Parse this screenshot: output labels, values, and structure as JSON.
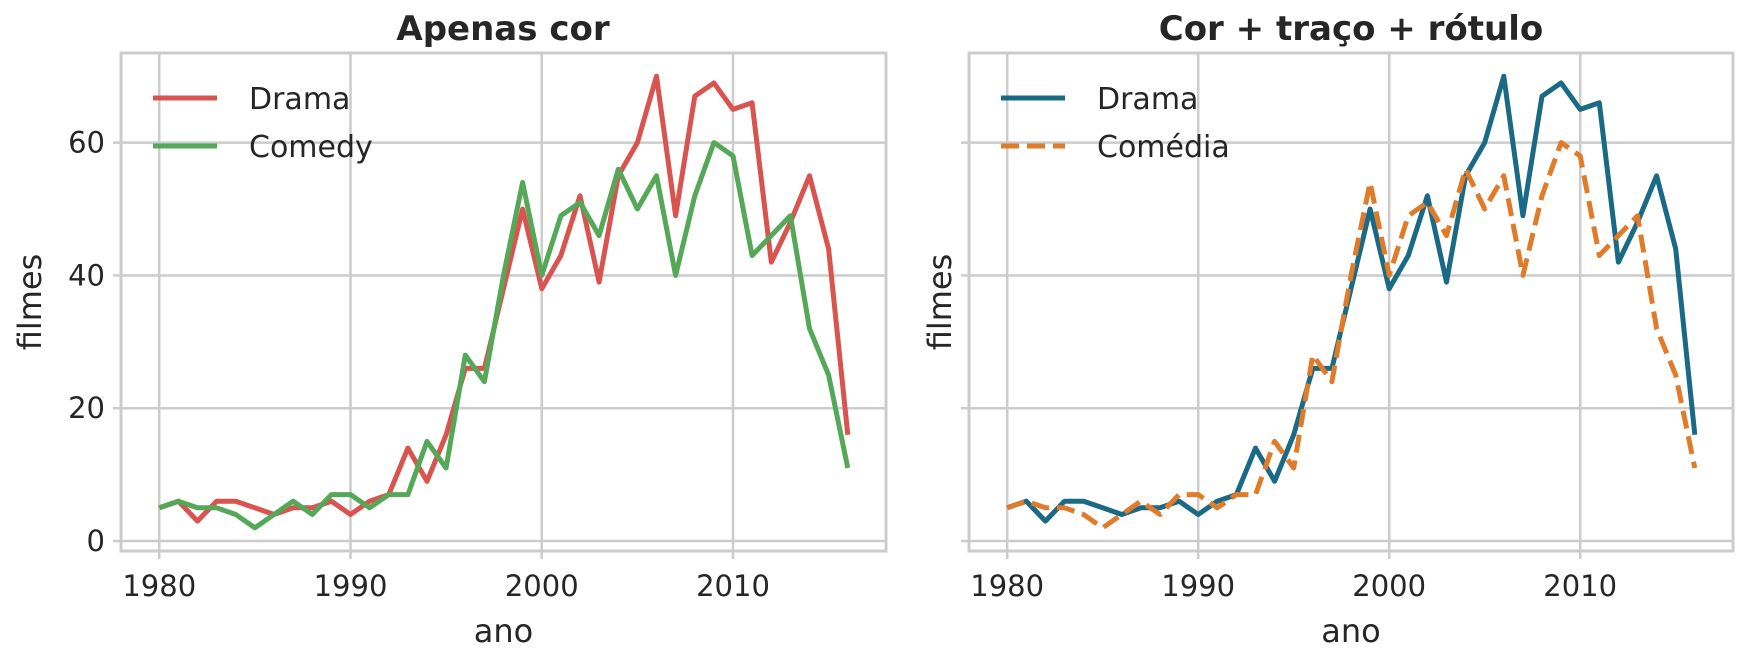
{
  "chart_data": [
    {
      "type": "line",
      "title": "Apenas cor",
      "xlabel": "ano",
      "ylabel": "filmes",
      "xlim": [
        1978,
        2018
      ],
      "ylim": [
        -1.5,
        73.5
      ],
      "xticks": [
        1980,
        1990,
        2000,
        2010
      ],
      "yticks": [
        0,
        20,
        40,
        60
      ],
      "grid": true,
      "legend": "top-left",
      "x": [
        1980,
        1981,
        1982,
        1983,
        1984,
        1985,
        1986,
        1987,
        1988,
        1989,
        1990,
        1991,
        1992,
        1993,
        1994,
        1995,
        1996,
        1997,
        1998,
        1999,
        2000,
        2001,
        2002,
        2003,
        2004,
        2005,
        2006,
        2007,
        2008,
        2009,
        2010,
        2011,
        2012,
        2013,
        2014,
        2015,
        2016
      ],
      "series": [
        {
          "name": "Drama",
          "color": "#d9534f",
          "dash": "solid",
          "values": [
            5,
            6,
            3,
            6,
            6,
            5,
            4,
            5,
            5,
            6,
            4,
            6,
            7,
            14,
            9,
            16,
            26,
            26,
            38,
            50,
            38,
            43,
            52,
            39,
            55,
            60,
            70,
            49,
            67,
            69,
            65,
            66,
            42,
            48,
            55,
            44,
            16
          ]
        },
        {
          "name": "Comedy",
          "color": "#55a858",
          "dash": "solid",
          "values": [
            5,
            6,
            5,
            5,
            4,
            2,
            4,
            6,
            4,
            7,
            7,
            5,
            7,
            7,
            15,
            11,
            28,
            24,
            40,
            54,
            40,
            49,
            51,
            46,
            56,
            50,
            55,
            40,
            52,
            60,
            58,
            43,
            46,
            49,
            32,
            25,
            11
          ]
        }
      ]
    },
    {
      "type": "line",
      "title": "Cor + traço + rótulo",
      "xlabel": "ano",
      "ylabel": "filmes",
      "xlim": [
        1978,
        2018
      ],
      "ylim": [
        -1.5,
        73.5
      ],
      "xticks": [
        1980,
        1990,
        2000,
        2010
      ],
      "yticks": [],
      "grid": true,
      "legend": "top-left",
      "x": [
        1980,
        1981,
        1982,
        1983,
        1984,
        1985,
        1986,
        1987,
        1988,
        1989,
        1990,
        1991,
        1992,
        1993,
        1994,
        1995,
        1996,
        1997,
        1998,
        1999,
        2000,
        2001,
        2002,
        2003,
        2004,
        2005,
        2006,
        2007,
        2008,
        2009,
        2010,
        2011,
        2012,
        2013,
        2014,
        2015,
        2016
      ],
      "series": [
        {
          "name": "Drama",
          "color": "#1b6a85",
          "dash": "solid",
          "values": [
            5,
            6,
            3,
            6,
            6,
            5,
            4,
            5,
            5,
            6,
            4,
            6,
            7,
            14,
            9,
            16,
            26,
            26,
            38,
            50,
            38,
            43,
            52,
            39,
            55,
            60,
            70,
            49,
            67,
            69,
            65,
            66,
            42,
            48,
            55,
            44,
            16
          ]
        },
        {
          "name": "Comédia",
          "color": "#e07b2a",
          "dash": "dashed",
          "values": [
            5,
            6,
            5,
            5,
            4,
            2,
            4,
            6,
            4,
            7,
            7,
            5,
            7,
            7,
            15,
            11,
            28,
            24,
            40,
            54,
            40,
            49,
            51,
            46,
            56,
            50,
            55,
            40,
            52,
            60,
            58,
            43,
            46,
            49,
            32,
            25,
            11
          ]
        }
      ]
    }
  ]
}
